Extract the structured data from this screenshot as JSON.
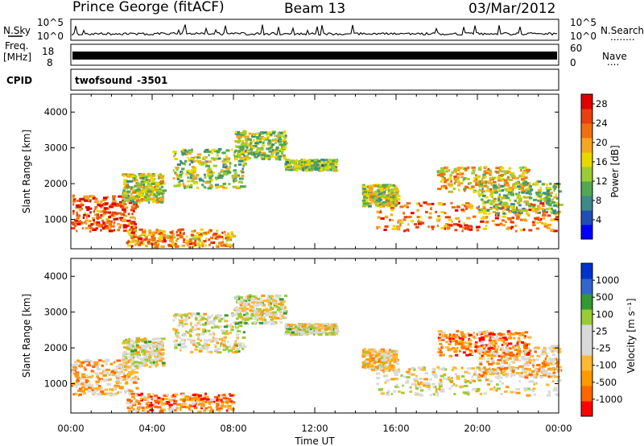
{
  "header": {
    "title": "Prince George (fitACF)",
    "beam": "Beam 13",
    "date": "03/Mar/2012"
  },
  "noise_panel": {
    "left_label": "N.Sky",
    "right_label": "N.Search",
    "right_dots": "........",
    "tick_top": "10^5",
    "tick_bottom": "10^0"
  },
  "freq_panel": {
    "left_label_line1": "Freq.",
    "left_label_line2": "[MHz]",
    "left_tick_top": "18",
    "left_tick_bottom": "8",
    "right_label": "Nave",
    "right_dots": "....",
    "right_tick_top": "60",
    "right_tick_bottom": "0"
  },
  "cpid_panel": {
    "label": "CPID",
    "program": "twofsound",
    "program_id": "-3501"
  },
  "colors": {
    "power_scale": [
      "#0000ff",
      "#1f4fb4",
      "#3c8a8a",
      "#52a852",
      "#9acd32",
      "#e8d800",
      "#f5a623",
      "#f07010",
      "#e84010",
      "#e00000"
    ],
    "velocity_scale": [
      "#ff0000",
      "#ff6600",
      "#ff9900",
      "#ffb833",
      "#d9d9d9",
      "#d9d9d9",
      "#99cc33",
      "#339933",
      "#3366cc",
      "#0033cc"
    ]
  },
  "chart_data": [
    {
      "type": "heatmap",
      "name": "power",
      "ylabel": "Slant Range [km]",
      "yticks": [
        "1000",
        "2000",
        "3000",
        "4000"
      ],
      "ylim": [
        180,
        4500
      ],
      "xticks": [
        "00:00",
        "04:00",
        "08:00",
        "12:00",
        "16:00",
        "20:00",
        "00:00"
      ],
      "xlim_hours": [
        0,
        24
      ],
      "colorbar": {
        "label": "Power [dB]",
        "ticks": [
          "4",
          "8",
          "12",
          "16",
          "20",
          "24",
          "28"
        ],
        "range": [
          0,
          30
        ]
      },
      "regions": [
        {
          "t": [
            0.0,
            3.2
          ],
          "r": [
            700,
            1700
          ],
          "level": 0.82
        },
        {
          "t": [
            2.7,
            8.0
          ],
          "r": [
            250,
            750
          ],
          "level": 0.7
        },
        {
          "t": [
            2.5,
            4.5
          ],
          "r": [
            1500,
            2300
          ],
          "level": 0.5
        },
        {
          "t": [
            5.0,
            8.5
          ],
          "r": [
            1900,
            3000
          ],
          "level": 0.45
        },
        {
          "t": [
            8.0,
            10.5
          ],
          "r": [
            2700,
            3500
          ],
          "level": 0.45
        },
        {
          "t": [
            10.5,
            13.0
          ],
          "r": [
            2400,
            2700
          ],
          "level": 0.4
        },
        {
          "t": [
            14.3,
            16.0
          ],
          "r": [
            1400,
            2000
          ],
          "level": 0.5
        },
        {
          "t": [
            15.0,
            24.0
          ],
          "r": [
            700,
            1500
          ],
          "level": 0.75
        },
        {
          "t": [
            18.0,
            22.5
          ],
          "r": [
            1800,
            2500
          ],
          "level": 0.6
        },
        {
          "t": [
            20.0,
            24.0
          ],
          "r": [
            1200,
            2100
          ],
          "level": 0.45
        }
      ]
    },
    {
      "type": "heatmap",
      "name": "velocity",
      "ylabel": "Slant Range [km]",
      "yticks": [
        "1000",
        "2000",
        "3000",
        "4000"
      ],
      "ylim": [
        180,
        4500
      ],
      "xticks": [
        "00:00",
        "04:00",
        "08:00",
        "12:00",
        "16:00",
        "20:00",
        "00:00"
      ],
      "xlabel": "Time UT",
      "xlim_hours": [
        0,
        24
      ],
      "colorbar": {
        "label": "Velocity [m s⁻¹]",
        "ticks": [
          "-1000",
          "-500",
          "-100",
          "-25",
          "25",
          "100",
          "500",
          "1000"
        ],
        "range": [
          -1200,
          1200
        ]
      },
      "regions": [
        {
          "t": [
            0.0,
            3.2
          ],
          "r": [
            700,
            1700
          ],
          "level": 0.35
        },
        {
          "t": [
            2.7,
            8.0
          ],
          "r": [
            250,
            750
          ],
          "level": 0.25
        },
        {
          "t": [
            2.5,
            4.5
          ],
          "r": [
            1500,
            2300
          ],
          "level": 0.5
        },
        {
          "t": [
            5.0,
            8.5
          ],
          "r": [
            1900,
            3000
          ],
          "level": 0.5
        },
        {
          "t": [
            8.0,
            10.5
          ],
          "r": [
            2700,
            3500
          ],
          "level": 0.5
        },
        {
          "t": [
            10.5,
            13.0
          ],
          "r": [
            2400,
            2700
          ],
          "level": 0.5
        },
        {
          "t": [
            14.3,
            16.0
          ],
          "r": [
            1400,
            2000
          ],
          "level": 0.4
        },
        {
          "t": [
            15.0,
            24.0
          ],
          "r": [
            700,
            1500
          ],
          "level": 0.45
        },
        {
          "t": [
            18.0,
            22.5
          ],
          "r": [
            1800,
            2500
          ],
          "level": 0.22
        },
        {
          "t": [
            20.0,
            24.0
          ],
          "r": [
            1200,
            2100
          ],
          "level": 0.35
        }
      ]
    }
  ]
}
